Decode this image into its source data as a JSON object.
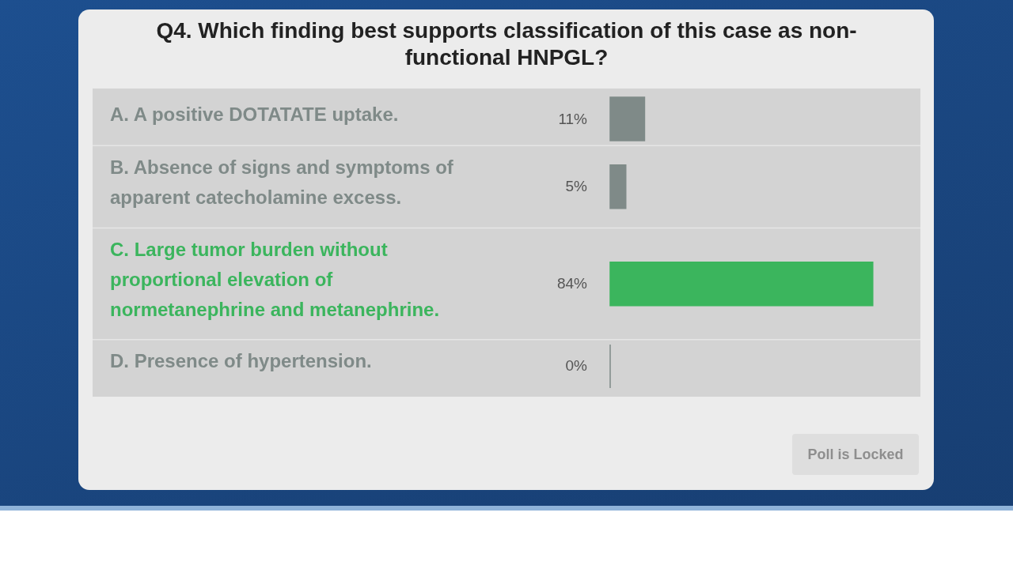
{
  "chart_data": {
    "type": "bar",
    "orientation": "horizontal",
    "title": "Q4. Which finding best supports classification of this case as non-functional HNPGL?",
    "categories": [
      "A. A positive DOTATATE uptake.",
      "B. Absence of signs and symptoms of apparent catecholamine excess.",
      "C. Large tumor burden without proportional elevation of normetanephrine and metanephrine.",
      "D. Presence of hypertension."
    ],
    "values": [
      11,
      5,
      84,
      0
    ],
    "value_labels": [
      "11%",
      "5%",
      "84%",
      "0%"
    ],
    "colors": [
      "#7f8a88",
      "#7f8a88",
      "#3bb55d",
      "#7f8a88"
    ],
    "grid": "y",
    "annotations": [
      "Poll is Locked"
    ]
  }
}
